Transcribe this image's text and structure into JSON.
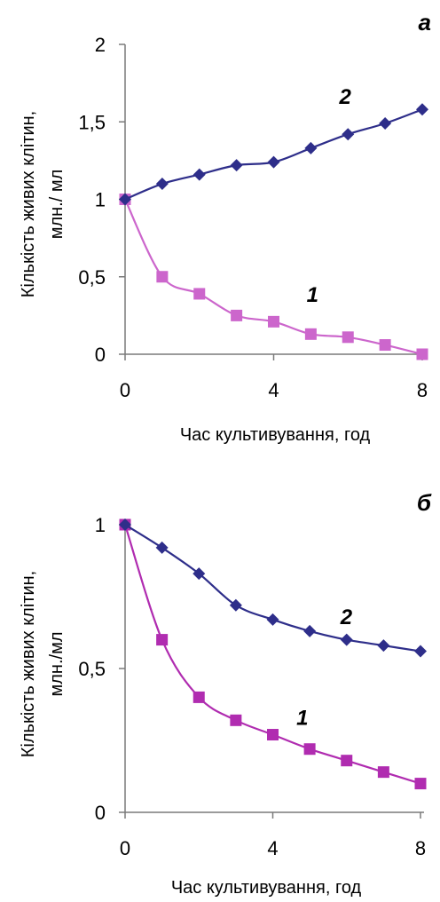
{
  "chart_data": [
    {
      "type": "line",
      "panel_label": "а",
      "xlabel": "Час культивування, год",
      "ylabel_line1": "Кількість живих клітин,",
      "ylabel_line2": "млн./ мл",
      "xlim": [
        0,
        8
      ],
      "ylim": [
        0,
        2
      ],
      "x_ticks": [
        0,
        4,
        8
      ],
      "y_ticks": [
        0,
        0.5,
        1,
        1.5,
        2
      ],
      "y_tick_labels": [
        "0",
        "0,5",
        "1",
        "1,5",
        "2"
      ],
      "x_tick_labels": [
        "0",
        "4",
        "8"
      ],
      "grid": false,
      "series": [
        {
          "name": "1",
          "color": "#cc66cc",
          "marker": "square",
          "x": [
            0,
            1,
            2,
            3,
            4,
            5,
            6,
            7,
            8
          ],
          "values": [
            1.0,
            0.5,
            0.39,
            0.25,
            0.21,
            0.13,
            0.11,
            0.06,
            0.0
          ]
        },
        {
          "name": "2",
          "color": "#2e2e8a",
          "marker": "diamond",
          "x": [
            0,
            1,
            2,
            3,
            4,
            5,
            6,
            7,
            8
          ],
          "values": [
            1.0,
            1.1,
            1.16,
            1.22,
            1.24,
            1.33,
            1.42,
            1.49,
            1.58
          ]
        }
      ]
    },
    {
      "type": "line",
      "panel_label": "б",
      "xlabel": "Час культивування, год",
      "ylabel_line1": "Кількість живих клітин,",
      "ylabel_line2": "млн./мл",
      "xlim": [
        0,
        8
      ],
      "ylim": [
        0,
        1
      ],
      "x_ticks": [
        0,
        4,
        8
      ],
      "y_ticks": [
        0,
        0.5,
        1
      ],
      "y_tick_labels": [
        "0",
        "0,5",
        "1"
      ],
      "x_tick_labels": [
        "0",
        "4",
        "8"
      ],
      "grid": false,
      "series": [
        {
          "name": "1",
          "color": "#b02cb0",
          "marker": "square",
          "x": [
            0,
            1,
            2,
            3,
            4,
            5,
            6,
            7,
            8
          ],
          "values": [
            1.0,
            0.6,
            0.4,
            0.32,
            0.27,
            0.22,
            0.18,
            0.14,
            0.1
          ]
        },
        {
          "name": "2",
          "color": "#2e2e8a",
          "marker": "diamond",
          "x": [
            0,
            1,
            2,
            3,
            4,
            5,
            6,
            7,
            8
          ],
          "values": [
            1.0,
            0.92,
            0.83,
            0.72,
            0.67,
            0.63,
            0.6,
            0.58,
            0.56
          ]
        }
      ]
    }
  ]
}
